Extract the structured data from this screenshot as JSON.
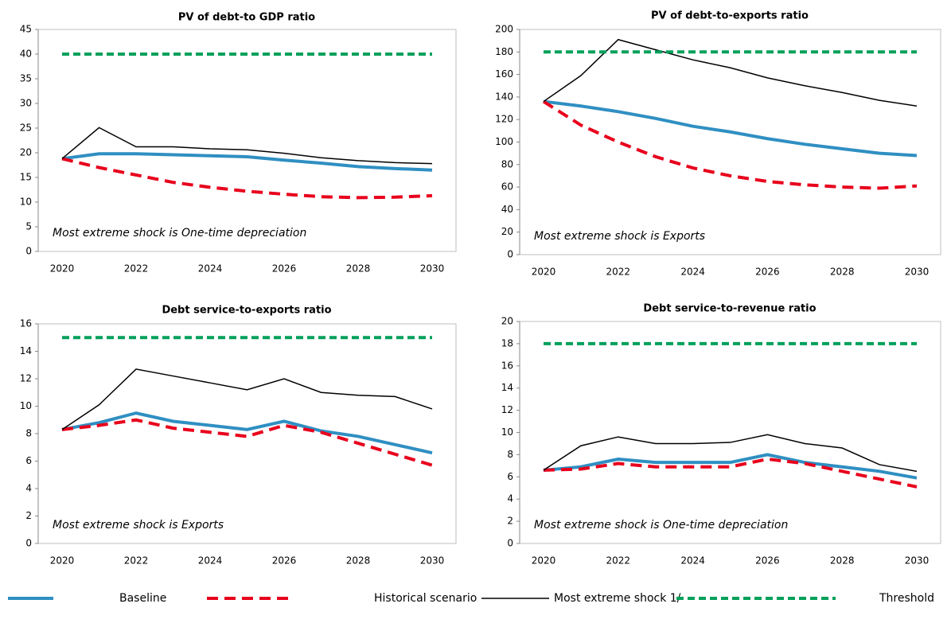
{
  "chart_data": [
    {
      "type": "line",
      "title": "PV of debt-to GDP ratio",
      "annotation": "Most extreme shock is One-time depreciation",
      "x": [
        2020,
        2021,
        2022,
        2023,
        2024,
        2025,
        2026,
        2027,
        2028,
        2029,
        2030
      ],
      "xlim": [
        2020,
        2030
      ],
      "xticks": [
        2020,
        2022,
        2024,
        2026,
        2028,
        2030
      ],
      "ylim": [
        0,
        45
      ],
      "yticks": [
        0,
        5,
        10,
        15,
        20,
        25,
        30,
        35,
        40,
        45
      ],
      "series": [
        {
          "name": "Baseline",
          "color": "#2f8fc2",
          "dash": "solid",
          "values": [
            18.8,
            19.8,
            19.8,
            19.6,
            19.4,
            19.2,
            18.5,
            17.9,
            17.2,
            16.8,
            16.5
          ]
        },
        {
          "name": "Historical scenario",
          "color": "#e8001c",
          "dash": "dashed",
          "values": [
            18.8,
            17.0,
            15.5,
            14.0,
            13.0,
            12.2,
            11.6,
            11.1,
            10.9,
            11.0,
            11.3
          ]
        },
        {
          "name": "Most extreme shock 1/",
          "color": "#000000",
          "dash": "solid",
          "values": [
            18.8,
            25.1,
            21.2,
            21.2,
            20.8,
            20.6,
            19.9,
            19.0,
            18.4,
            18.0,
            17.8
          ]
        },
        {
          "name": "Threshold",
          "color": "#00a05a",
          "dash": "dashed",
          "values": [
            40,
            40,
            40,
            40,
            40,
            40,
            40,
            40,
            40,
            40,
            40
          ]
        }
      ]
    },
    {
      "type": "line",
      "title": "PV of debt-to-exports ratio",
      "annotation": "Most extreme shock is Exports",
      "x": [
        2020,
        2021,
        2022,
        2023,
        2024,
        2025,
        2026,
        2027,
        2028,
        2029,
        2030
      ],
      "xlim": [
        2020,
        2030
      ],
      "xticks": [
        2020,
        2022,
        2024,
        2026,
        2028,
        2030
      ],
      "ylim": [
        0,
        200
      ],
      "yticks": [
        0,
        20,
        40,
        60,
        80,
        100,
        120,
        140,
        160,
        180,
        200
      ],
      "series": [
        {
          "color": "#2f8fc2",
          "dash": "solid",
          "values": [
            136,
            132,
            127,
            121,
            114,
            109,
            103,
            98,
            94,
            90,
            88
          ]
        },
        {
          "color": "#e8001c",
          "dash": "dashed",
          "values": [
            136,
            115,
            100,
            87,
            77,
            70,
            65,
            62,
            60,
            59,
            61
          ]
        },
        {
          "color": "#000000",
          "dash": "solid",
          "values": [
            136,
            159,
            191,
            182,
            173,
            166,
            157,
            150,
            144,
            137,
            132
          ]
        },
        {
          "color": "#00a05a",
          "dash": "dashed",
          "values": [
            180,
            180,
            180,
            180,
            180,
            180,
            180,
            180,
            180,
            180,
            180
          ]
        }
      ]
    },
    {
      "type": "line",
      "title": "Debt service-to-exports ratio",
      "annotation": "Most extreme shock is Exports",
      "x": [
        2020,
        2021,
        2022,
        2023,
        2024,
        2025,
        2026,
        2027,
        2028,
        2029,
        2030
      ],
      "xlim": [
        2020,
        2030
      ],
      "xticks": [
        2020,
        2022,
        2024,
        2026,
        2028,
        2030
      ],
      "ylim": [
        0,
        16
      ],
      "yticks": [
        0,
        2,
        4,
        6,
        8,
        10,
        12,
        14,
        16
      ],
      "series": [
        {
          "color": "#2f8fc2",
          "dash": "solid",
          "values": [
            8.3,
            8.8,
            9.5,
            8.9,
            8.6,
            8.3,
            8.9,
            8.2,
            7.8,
            7.2,
            6.6
          ]
        },
        {
          "color": "#e8001c",
          "dash": "dashed",
          "values": [
            8.3,
            8.6,
            9.0,
            8.4,
            8.1,
            7.8,
            8.6,
            8.1,
            7.3,
            6.5,
            5.7
          ]
        },
        {
          "color": "#000000",
          "dash": "solid",
          "values": [
            8.3,
            10.1,
            12.7,
            12.2,
            11.7,
            11.2,
            12.0,
            11.0,
            10.8,
            10.7,
            9.8
          ]
        },
        {
          "color": "#00a05a",
          "dash": "dashed",
          "values": [
            15,
            15,
            15,
            15,
            15,
            15,
            15,
            15,
            15,
            15,
            15
          ]
        }
      ]
    },
    {
      "type": "line",
      "title": "Debt service-to-revenue ratio",
      "annotation": "Most extreme shock is One-time depreciation",
      "x": [
        2020,
        2021,
        2022,
        2023,
        2024,
        2025,
        2026,
        2027,
        2028,
        2029,
        2030
      ],
      "xlim": [
        2020,
        2030
      ],
      "xticks": [
        2020,
        2022,
        2024,
        2026,
        2028,
        2030
      ],
      "ylim": [
        0,
        20
      ],
      "yticks": [
        0,
        2,
        4,
        6,
        8,
        10,
        12,
        14,
        16,
        18,
        20
      ],
      "series": [
        {
          "color": "#2f8fc2",
          "dash": "solid",
          "values": [
            6.6,
            6.9,
            7.6,
            7.3,
            7.3,
            7.3,
            8.0,
            7.3,
            6.9,
            6.5,
            5.9
          ]
        },
        {
          "color": "#e8001c",
          "dash": "dashed",
          "values": [
            6.6,
            6.7,
            7.2,
            6.9,
            6.9,
            6.9,
            7.6,
            7.2,
            6.5,
            5.8,
            5.1
          ]
        },
        {
          "color": "#000000",
          "dash": "solid",
          "values": [
            6.6,
            8.8,
            9.6,
            9.0,
            9.0,
            9.1,
            9.8,
            9.0,
            8.6,
            7.1,
            6.5
          ]
        },
        {
          "color": "#00a05a",
          "dash": "dashed",
          "values": [
            18,
            18,
            18,
            18,
            18,
            18,
            18,
            18,
            18,
            18,
            18
          ]
        }
      ]
    }
  ]
}
